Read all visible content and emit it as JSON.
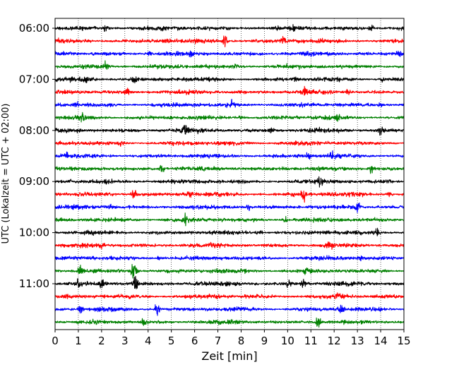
{
  "chart_data": {
    "type": "line",
    "title": "",
    "xlabel": "Zeit  [min]",
    "ylabel": "UTC (Lokalzeit = UTC + 02:00)",
    "xlim": [
      0,
      15
    ],
    "x_ticks": [
      0,
      1,
      2,
      3,
      4,
      5,
      6,
      7,
      8,
      9,
      10,
      11,
      12,
      13,
      14,
      15
    ],
    "x_tick_labels": [
      "0",
      "1",
      "2",
      "3",
      "4",
      "5",
      "6",
      "7",
      "8",
      "9",
      "10",
      "11",
      "12",
      "13",
      "14",
      "15"
    ],
    "y_tick_labels": [
      "06:00",
      "07:00",
      "08:00",
      "09:00",
      "10:00",
      "11:00"
    ],
    "y_tick_rows": [
      0,
      4,
      8,
      12,
      16,
      20
    ],
    "vertical_grid": "dotted",
    "legend": "none",
    "trace_colors": [
      "#000000",
      "#ff0000",
      "#0000ff",
      "#008000"
    ],
    "series": [
      {
        "start": "06:00",
        "color": "#000000",
        "events": [
          [
            2.2,
            0.6
          ],
          [
            4.6,
            0.5
          ],
          [
            10.2,
            0.5
          ],
          [
            13.6,
            0.8
          ]
        ]
      },
      {
        "start": "06:15",
        "color": "#ff0000",
        "events": [
          [
            4.8,
            0.5
          ],
          [
            7.3,
            1.5
          ],
          [
            9.8,
            0.6
          ]
        ]
      },
      {
        "start": "06:30",
        "color": "#0000ff",
        "events": [
          [
            4.1,
            0.5
          ],
          [
            5.8,
            0.6
          ],
          [
            14.8,
            0.8
          ]
        ]
      },
      {
        "start": "06:45",
        "color": "#008000",
        "events": [
          [
            2.15,
            1.4
          ],
          [
            7.8,
            0.6
          ]
        ]
      },
      {
        "start": "07:00",
        "color": "#000000",
        "events": [
          [
            1.3,
            0.6
          ],
          [
            3.4,
            0.8
          ],
          [
            10.3,
            0.6
          ],
          [
            14.1,
            0.6
          ]
        ]
      },
      {
        "start": "07:15",
        "color": "#ff0000",
        "events": [
          [
            3.1,
            0.8
          ],
          [
            10.7,
            1.0
          ],
          [
            12.6,
            0.6
          ]
        ]
      },
      {
        "start": "07:30",
        "color": "#0000ff",
        "events": [
          [
            0.9,
            0.6
          ],
          [
            7.6,
            0.8
          ],
          [
            14.0,
            0.6
          ]
        ]
      },
      {
        "start": "07:45",
        "color": "#008000",
        "events": [
          [
            1.2,
            0.8
          ],
          [
            8.0,
            0.6
          ],
          [
            12.1,
            0.7
          ]
        ]
      },
      {
        "start": "08:00",
        "color": "#000000",
        "events": [
          [
            5.6,
            1.0
          ],
          [
            9.3,
            0.8
          ],
          [
            14.0,
            0.8
          ]
        ]
      },
      {
        "start": "08:15",
        "color": "#ff0000",
        "events": [
          [
            2.8,
            0.6
          ],
          [
            10.3,
            0.6
          ]
        ]
      },
      {
        "start": "08:30",
        "color": "#0000ff",
        "events": [
          [
            0.5,
            0.8
          ],
          [
            10.9,
            0.9
          ],
          [
            11.9,
            0.8
          ]
        ]
      },
      {
        "start": "08:45",
        "color": "#008000",
        "events": [
          [
            4.6,
            1.0
          ],
          [
            9.8,
            0.8
          ],
          [
            13.6,
            1.1
          ]
        ]
      },
      {
        "start": "09:00",
        "color": "#000000",
        "events": [
          [
            2.2,
            0.5
          ],
          [
            11.4,
            1.3
          ],
          [
            14.4,
            0.5
          ]
        ]
      },
      {
        "start": "09:15",
        "color": "#ff0000",
        "events": [
          [
            3.4,
            1.4
          ],
          [
            5.8,
            1.2
          ],
          [
            10.7,
            1.5
          ],
          [
            14.4,
            0.7
          ]
        ]
      },
      {
        "start": "09:30",
        "color": "#0000ff",
        "events": [
          [
            2.4,
            0.6
          ],
          [
            8.3,
            0.7
          ],
          [
            13.0,
            1.2
          ]
        ]
      },
      {
        "start": "09:45",
        "color": "#008000",
        "events": [
          [
            5.6,
            1.0
          ],
          [
            9.9,
            0.7
          ]
        ]
      },
      {
        "start": "10:00",
        "color": "#000000",
        "events": [
          [
            8.8,
            0.6
          ],
          [
            13.8,
            1.3
          ]
        ]
      },
      {
        "start": "10:15",
        "color": "#ff0000",
        "events": [
          [
            2.0,
            0.8
          ],
          [
            11.8,
            1.2
          ]
        ]
      },
      {
        "start": "10:30",
        "color": "#0000ff",
        "events": [
          [
            4.5,
            0.5
          ],
          [
            13.1,
            0.5
          ]
        ]
      },
      {
        "start": "10:45",
        "color": "#008000",
        "events": [
          [
            1.1,
            1.2
          ],
          [
            3.4,
            2.8
          ],
          [
            10.8,
            0.9
          ]
        ]
      },
      {
        "start": "11:00",
        "color": "#000000",
        "events": [
          [
            1.0,
            1.0
          ],
          [
            2.0,
            1.2
          ],
          [
            3.45,
            1.8
          ],
          [
            10.1,
            1.0
          ],
          [
            10.7,
            1.0
          ]
        ]
      },
      {
        "start": "11:15",
        "color": "#ff0000",
        "events": [
          [
            12.2,
            0.8
          ]
        ]
      },
      {
        "start": "11:30",
        "color": "#0000ff",
        "events": [
          [
            1.1,
            1.1
          ],
          [
            4.4,
            1.6
          ],
          [
            12.3,
            0.8
          ]
        ]
      },
      {
        "start": "11:45",
        "color": "#008000",
        "events": [
          [
            3.8,
            0.7
          ],
          [
            11.3,
            1.5
          ]
        ]
      }
    ]
  }
}
